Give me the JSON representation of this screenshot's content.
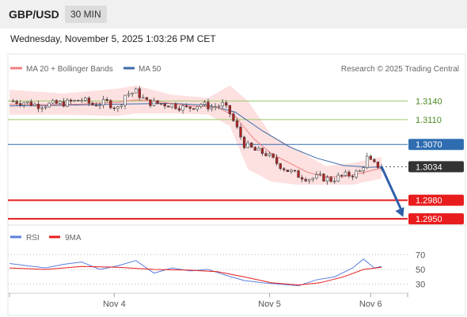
{
  "header": {
    "symbol": "GBP/USD",
    "interval": "30 MIN",
    "datetime": "Wednesday, November 5, 2025 1:03:26 PM CET"
  },
  "legend": {
    "ma20": "MA 20 + Bollinger Bands",
    "ma50": "MA 50",
    "source": "Research © 2025 Trading Central",
    "rsi": "RSI",
    "ma9": "9MA"
  },
  "colors": {
    "ma20": "#f08080",
    "bollinger": "#fde0e0",
    "ma50": "#3c6aa8",
    "resistance": "#9cc96b",
    "pivot": "#2f6db0",
    "support": "#e81c1c",
    "current": "#333333",
    "up_candle": "#ffffff",
    "down_candle": "#b22222",
    "rsi": "#5b7fe0",
    "rsi_ma": "#e81c1c",
    "arrow": "#2f5fa8"
  },
  "chart_data": [
    {
      "type": "candlestick",
      "y_range": [
        1.294,
        1.3175
      ],
      "x_ticks": [
        "Nov 4",
        "Nov 5",
        "Nov 6"
      ],
      "levels": [
        {
          "label": "1.3140",
          "value": 1.314,
          "kind": "resistance"
        },
        {
          "label": "1.3110",
          "value": 1.311,
          "kind": "resistance"
        },
        {
          "label": "1.3070",
          "value": 1.307,
          "kind": "pivot"
        },
        {
          "label": "1.3034",
          "value": 1.3034,
          "kind": "current"
        },
        {
          "label": "1.2980",
          "value": 1.298,
          "kind": "support"
        },
        {
          "label": "1.2950",
          "value": 1.295,
          "kind": "support"
        }
      ],
      "close_path": [
        [
          0,
          1.314
        ],
        [
          8,
          1.3138
        ],
        [
          16,
          1.3133
        ],
        [
          24,
          1.3135
        ],
        [
          32,
          1.3137
        ],
        [
          40,
          1.3142
        ],
        [
          46,
          1.3134
        ],
        [
          54,
          1.3138
        ],
        [
          60,
          1.3128
        ],
        [
          64,
          1.315
        ],
        [
          70,
          1.3155
        ],
        [
          76,
          1.3138
        ],
        [
          82,
          1.3136
        ],
        [
          90,
          1.3134
        ],
        [
          98,
          1.3128
        ],
        [
          106,
          1.3135
        ],
        [
          112,
          1.313
        ],
        [
          118,
          1.3134
        ],
        [
          122,
          1.312
        ],
        [
          126,
          1.3095
        ],
        [
          130,
          1.307
        ],
        [
          136,
          1.306
        ],
        [
          142,
          1.3055
        ],
        [
          148,
          1.304
        ],
        [
          154,
          1.3028
        ],
        [
          160,
          1.302
        ],
        [
          166,
          1.3015
        ],
        [
          172,
          1.3017
        ],
        [
          178,
          1.3013
        ],
        [
          184,
          1.3019
        ],
        [
          190,
          1.3022
        ],
        [
          194,
          1.3026
        ],
        [
          198,
          1.3048
        ],
        [
          201,
          1.3038
        ],
        [
          206,
          1.3034
        ]
      ],
      "ma20": [
        [
          0,
          1.3135
        ],
        [
          20,
          1.3134
        ],
        [
          40,
          1.3135
        ],
        [
          60,
          1.3138
        ],
        [
          70,
          1.3142
        ],
        [
          85,
          1.3138
        ],
        [
          100,
          1.3132
        ],
        [
          115,
          1.313
        ],
        [
          125,
          1.3115
        ],
        [
          135,
          1.308
        ],
        [
          145,
          1.3055
        ],
        [
          155,
          1.304
        ],
        [
          165,
          1.3025
        ],
        [
          175,
          1.3018
        ],
        [
          185,
          1.3018
        ],
        [
          195,
          1.3024
        ],
        [
          206,
          1.3032
        ]
      ],
      "ma50": [
        [
          0,
          1.3132
        ],
        [
          30,
          1.3133
        ],
        [
          60,
          1.3135
        ],
        [
          90,
          1.3136
        ],
        [
          110,
          1.3133
        ],
        [
          125,
          1.3122
        ],
        [
          140,
          1.3092
        ],
        [
          155,
          1.3066
        ],
        [
          170,
          1.3048
        ],
        [
          185,
          1.3036
        ],
        [
          200,
          1.3033
        ],
        [
          206,
          1.3034
        ]
      ],
      "bollinger_band": [
        [
          0,
          1.3158,
          1.3118
        ],
        [
          30,
          1.3152,
          1.3118
        ],
        [
          60,
          1.316,
          1.3116
        ],
        [
          70,
          1.3165,
          1.312
        ],
        [
          90,
          1.315,
          1.312
        ],
        [
          110,
          1.3145,
          1.3118
        ],
        [
          122,
          1.3165,
          1.31
        ],
        [
          132,
          1.314,
          1.303
        ],
        [
          145,
          1.3085,
          1.301
        ],
        [
          160,
          1.306,
          1.3005
        ],
        [
          175,
          1.3035,
          1.3005
        ],
        [
          190,
          1.304,
          1.3005
        ],
        [
          206,
          1.305,
          1.3015
        ]
      ],
      "projection": [
        [
          206,
          1.3034
        ],
        [
          218,
          1.2953
        ]
      ]
    },
    {
      "type": "line",
      "name": "RSI",
      "y_range": [
        20,
        80
      ],
      "y_ticks": [
        70,
        50,
        30
      ],
      "series": [
        {
          "name": "RSI",
          "values": [
            [
              0,
              58
            ],
            [
              10,
              55
            ],
            [
              20,
              52
            ],
            [
              30,
              57
            ],
            [
              40,
              60
            ],
            [
              50,
              50
            ],
            [
              60,
              55
            ],
            [
              70,
              62
            ],
            [
              80,
              45
            ],
            [
              90,
              52
            ],
            [
              100,
              48
            ],
            [
              110,
              50
            ],
            [
              120,
              42
            ],
            [
              130,
              35
            ],
            [
              140,
              32
            ],
            [
              150,
              30
            ],
            [
              160,
              28
            ],
            [
              170,
              36
            ],
            [
              180,
              40
            ],
            [
              190,
              52
            ],
            [
              196,
              64
            ],
            [
              202,
              52
            ],
            [
              206,
              54
            ]
          ]
        },
        {
          "name": "9MA",
          "values": [
            [
              0,
              52
            ],
            [
              20,
              50
            ],
            [
              40,
              54
            ],
            [
              60,
              53
            ],
            [
              80,
              50
            ],
            [
              100,
              49
            ],
            [
              115,
              47
            ],
            [
              130,
              40
            ],
            [
              145,
              32
            ],
            [
              160,
              29
            ],
            [
              172,
              32
            ],
            [
              185,
              40
            ],
            [
              196,
              50
            ],
            [
              206,
              53
            ]
          ]
        }
      ]
    }
  ]
}
